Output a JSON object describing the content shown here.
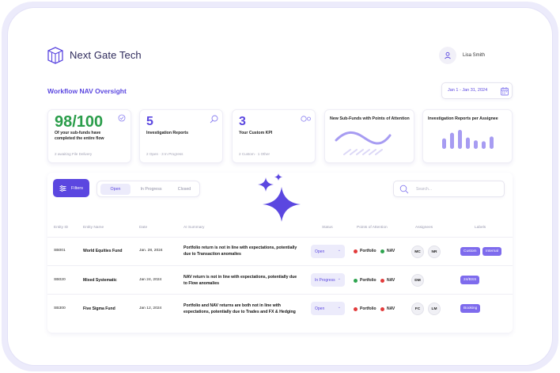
{
  "app": {
    "name": "Next Gate Tech"
  },
  "user": {
    "name": "Lisa Smith"
  },
  "page": {
    "title": "Workflow NAV Oversight",
    "date_range": "Jan 1 - Jan 31, 2024"
  },
  "kpis": [
    {
      "value": "98/100",
      "subtitle": "Of your sub-funds have completed the entire flow",
      "footer": "2 awaiting File Delivery"
    },
    {
      "value": "5",
      "subtitle": "Investigation Reports",
      "footer": "2 Open  ·  3 In Progress"
    },
    {
      "value": "3",
      "subtitle": "Your Custom KPI",
      "footer": "2 Custom  ·  1 Other"
    },
    {
      "title": "New Sub-Funds with Points of Attention"
    },
    {
      "title": "Investigation Reports per Assignee",
      "bars": [
        0.55,
        0.85,
        1.0,
        0.6,
        0.45,
        0.4,
        0.65
      ]
    }
  ],
  "toolbar": {
    "filters_label": "Filters",
    "tabs": [
      "Open",
      "In Progress",
      "Closed"
    ],
    "search_placeholder": "Search..."
  },
  "table": {
    "headers": [
      "Entity ID",
      "Entity Name",
      "Date",
      "AI Summary",
      "Status",
      "Points of Attention",
      "Assignees",
      "Labels"
    ],
    "rows": [
      {
        "id": "SB001",
        "name": "World Equities Fund",
        "date": "Jan. 28, 2024",
        "summary": "Portfolio return is not in line with expectations, potentially due to Transaction anomalies",
        "status": "Open",
        "poa": [
          {
            "label": "Portfolio",
            "color": "#e23b3b"
          },
          {
            "label": "NAV",
            "color": "#2ea44f"
          }
        ],
        "assignees": [
          "MC",
          "NR"
        ],
        "labels": [
          "Custom",
          "Internal"
        ]
      },
      {
        "id": "SB020",
        "name": "Mixed Systematic",
        "date": "Jan 24, 2024",
        "summary": "NAV return is not in line with expectations, potentially due to Flow anomalies",
        "status": "In Progress",
        "poa": [
          {
            "label": "Portfolio",
            "color": "#2ea44f"
          },
          {
            "label": "NAV",
            "color": "#e23b3b"
          }
        ],
        "assignees": [
          "DM"
        ],
        "labels": [
          "24/BSS"
        ]
      },
      {
        "id": "SB300",
        "name": "Five Sigma Fund",
        "date": "Jan 12, 2024",
        "summary": "Portfolio and NAV returns are both not in line with expectations, potentially due to Trades and FX & Hedging",
        "status": "Open",
        "poa": [
          {
            "label": "Portfolio",
            "color": "#e23b3b"
          },
          {
            "label": "NAV",
            "color": "#e23b3b"
          }
        ],
        "assignees": [
          "FC",
          "LM"
        ],
        "labels": [
          "Booking"
        ]
      }
    ]
  },
  "colors": {
    "accent": "#5b47e0",
    "success": "#2a9d4a",
    "danger": "#e23b3b"
  }
}
